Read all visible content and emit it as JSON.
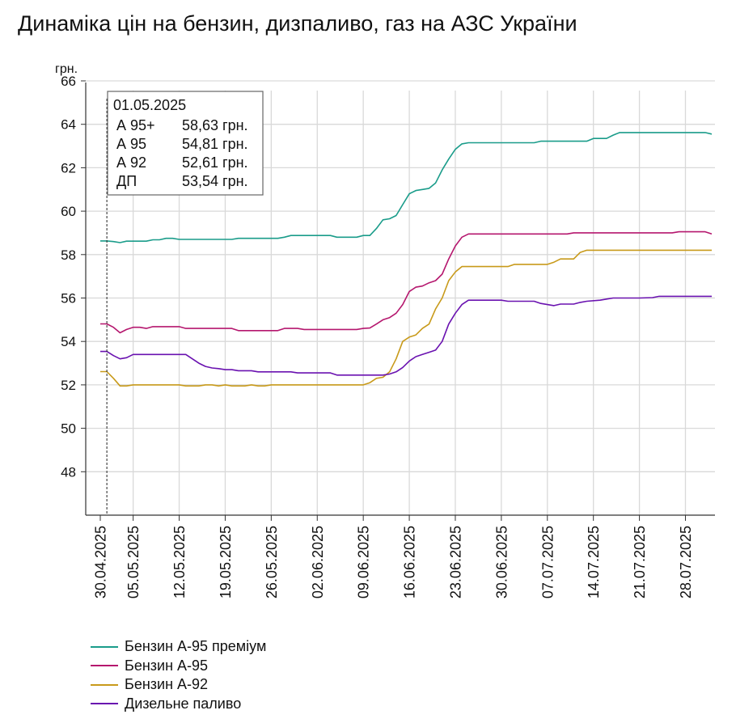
{
  "title": "Динаміка цін на бензин, дизпаливо, газ на АЗС України",
  "chart_data": {
    "type": "line",
    "title": "Динаміка цін на бензин, дизпаливо, газ на АЗС України",
    "ylabel": "грн.",
    "xlabel": "",
    "ylim": [
      46,
      66
    ],
    "yticks": [
      48,
      50,
      52,
      54,
      56,
      58,
      60,
      62,
      64,
      66
    ],
    "xlim": [
      "2025-04-30",
      "2025-08-01"
    ],
    "xtick_labels": [
      "30.04.2025",
      "05.05.2025",
      "12.05.2025",
      "19.05.2025",
      "26.05.2025",
      "02.06.2025",
      "09.06.2025",
      "16.06.2025",
      "23.06.2025",
      "30.06.2025",
      "07.07.2025",
      "14.07.2025",
      "21.07.2025",
      "28.07.2025"
    ],
    "xtick_dates": [
      "2025-04-30",
      "2025-05-05",
      "2025-05-12",
      "2025-05-19",
      "2025-05-26",
      "2025-06-02",
      "2025-06-09",
      "2025-06-16",
      "2025-06-23",
      "2025-06-30",
      "2025-07-07",
      "2025-07-14",
      "2025-07-21",
      "2025-07-28"
    ],
    "grid": true,
    "legend_position": "bottom-left",
    "hover": {
      "date": "2025-05-01",
      "date_label": "01.05.2025",
      "rows": [
        {
          "label": "А 95+",
          "value": "58,63 грн."
        },
        {
          "label": "А 95",
          "value": "54,81 грн."
        },
        {
          "label": "А 92",
          "value": "52,61 грн."
        },
        {
          "label": "ДП",
          "value": "53,54 грн."
        }
      ]
    },
    "series": [
      {
        "name": "Бензин А-95 преміум",
        "color": "#1a9c8a",
        "points": [
          [
            "2025-04-30",
            58.63
          ],
          [
            "2025-05-01",
            58.63
          ],
          [
            "2025-05-02",
            58.6
          ],
          [
            "2025-05-03",
            58.55
          ],
          [
            "2025-05-04",
            58.62
          ],
          [
            "2025-05-06",
            58.62
          ],
          [
            "2025-05-07",
            58.62
          ],
          [
            "2025-05-08",
            58.68
          ],
          [
            "2025-05-09",
            58.68
          ],
          [
            "2025-05-10",
            58.75
          ],
          [
            "2025-05-11",
            58.75
          ],
          [
            "2025-05-12",
            58.7
          ],
          [
            "2025-05-20",
            58.7
          ],
          [
            "2025-05-21",
            58.75
          ],
          [
            "2025-05-27",
            58.75
          ],
          [
            "2025-05-28",
            58.8
          ],
          [
            "2025-05-29",
            58.88
          ],
          [
            "2025-06-04",
            58.88
          ],
          [
            "2025-06-05",
            58.8
          ],
          [
            "2025-06-08",
            58.8
          ],
          [
            "2025-06-09",
            58.88
          ],
          [
            "2025-06-10",
            58.88
          ],
          [
            "2025-06-11",
            59.2
          ],
          [
            "2025-06-12",
            59.6
          ],
          [
            "2025-06-13",
            59.65
          ],
          [
            "2025-06-14",
            59.8
          ],
          [
            "2025-06-15",
            60.3
          ],
          [
            "2025-06-16",
            60.8
          ],
          [
            "2025-06-17",
            60.95
          ],
          [
            "2025-06-18",
            61.0
          ],
          [
            "2025-06-19",
            61.05
          ],
          [
            "2025-06-20",
            61.3
          ],
          [
            "2025-06-21",
            61.9
          ],
          [
            "2025-06-22",
            62.4
          ],
          [
            "2025-06-23",
            62.85
          ],
          [
            "2025-06-24",
            63.1
          ],
          [
            "2025-06-25",
            63.15
          ],
          [
            "2025-07-05",
            63.15
          ],
          [
            "2025-07-06",
            63.22
          ],
          [
            "2025-07-13",
            63.22
          ],
          [
            "2025-07-14",
            63.35
          ],
          [
            "2025-07-16",
            63.35
          ],
          [
            "2025-07-17",
            63.5
          ],
          [
            "2025-07-18",
            63.62
          ],
          [
            "2025-07-31",
            63.62
          ],
          [
            "2025-08-01",
            63.55
          ]
        ]
      },
      {
        "name": "Бензин А-95",
        "color": "#b5176e",
        "points": [
          [
            "2025-04-30",
            54.81
          ],
          [
            "2025-05-01",
            54.81
          ],
          [
            "2025-05-02",
            54.65
          ],
          [
            "2025-05-03",
            54.4
          ],
          [
            "2025-05-04",
            54.55
          ],
          [
            "2025-05-05",
            54.65
          ],
          [
            "2025-05-06",
            54.65
          ],
          [
            "2025-05-07",
            54.6
          ],
          [
            "2025-05-08",
            54.68
          ],
          [
            "2025-05-12",
            54.68
          ],
          [
            "2025-05-13",
            54.6
          ],
          [
            "2025-05-20",
            54.6
          ],
          [
            "2025-05-21",
            54.5
          ],
          [
            "2025-05-27",
            54.5
          ],
          [
            "2025-05-28",
            54.6
          ],
          [
            "2025-05-30",
            54.6
          ],
          [
            "2025-05-31",
            54.55
          ],
          [
            "2025-06-08",
            54.55
          ],
          [
            "2025-06-09",
            54.6
          ],
          [
            "2025-06-10",
            54.62
          ],
          [
            "2025-06-11",
            54.8
          ],
          [
            "2025-06-12",
            55.0
          ],
          [
            "2025-06-13",
            55.1
          ],
          [
            "2025-06-14",
            55.3
          ],
          [
            "2025-06-15",
            55.7
          ],
          [
            "2025-06-16",
            56.3
          ],
          [
            "2025-06-17",
            56.5
          ],
          [
            "2025-06-18",
            56.55
          ],
          [
            "2025-06-19",
            56.7
          ],
          [
            "2025-06-20",
            56.8
          ],
          [
            "2025-06-21",
            57.1
          ],
          [
            "2025-06-22",
            57.8
          ],
          [
            "2025-06-23",
            58.4
          ],
          [
            "2025-06-24",
            58.8
          ],
          [
            "2025-06-25",
            58.95
          ],
          [
            "2025-07-10",
            58.95
          ],
          [
            "2025-07-11",
            59.0
          ],
          [
            "2025-07-26",
            59.0
          ],
          [
            "2025-07-27",
            59.05
          ],
          [
            "2025-07-31",
            59.05
          ],
          [
            "2025-08-01",
            58.95
          ]
        ]
      },
      {
        "name": "Бензин А-92",
        "color": "#c89a1a",
        "points": [
          [
            "2025-04-30",
            52.61
          ],
          [
            "2025-05-01",
            52.61
          ],
          [
            "2025-05-02",
            52.3
          ],
          [
            "2025-05-03",
            51.95
          ],
          [
            "2025-05-04",
            51.95
          ],
          [
            "2025-05-05",
            52.0
          ],
          [
            "2025-05-12",
            52.0
          ],
          [
            "2025-05-13",
            51.95
          ],
          [
            "2025-05-15",
            51.95
          ],
          [
            "2025-05-16",
            52.0
          ],
          [
            "2025-05-17",
            52.0
          ],
          [
            "2025-05-18",
            51.95
          ],
          [
            "2025-05-19",
            52.0
          ],
          [
            "2025-05-20",
            51.95
          ],
          [
            "2025-05-22",
            51.95
          ],
          [
            "2025-05-23",
            52.0
          ],
          [
            "2025-05-24",
            51.95
          ],
          [
            "2025-05-25",
            51.95
          ],
          [
            "2025-05-26",
            52.0
          ],
          [
            "2025-06-09",
            52.0
          ],
          [
            "2025-06-10",
            52.1
          ],
          [
            "2025-06-11",
            52.3
          ],
          [
            "2025-06-12",
            52.35
          ],
          [
            "2025-06-13",
            52.6
          ],
          [
            "2025-06-14",
            53.2
          ],
          [
            "2025-06-15",
            54.0
          ],
          [
            "2025-06-16",
            54.2
          ],
          [
            "2025-06-17",
            54.3
          ],
          [
            "2025-06-18",
            54.6
          ],
          [
            "2025-06-19",
            54.8
          ],
          [
            "2025-06-20",
            55.5
          ],
          [
            "2025-06-21",
            56.0
          ],
          [
            "2025-06-22",
            56.8
          ],
          [
            "2025-06-23",
            57.2
          ],
          [
            "2025-06-24",
            57.45
          ],
          [
            "2025-07-01",
            57.45
          ],
          [
            "2025-07-02",
            57.55
          ],
          [
            "2025-07-07",
            57.55
          ],
          [
            "2025-07-08",
            57.65
          ],
          [
            "2025-07-09",
            57.8
          ],
          [
            "2025-07-11",
            57.8
          ],
          [
            "2025-07-12",
            58.1
          ],
          [
            "2025-07-13",
            58.2
          ],
          [
            "2025-08-01",
            58.2
          ]
        ]
      },
      {
        "name": "Дизельне паливо",
        "color": "#6a12b0",
        "points": [
          [
            "2025-04-30",
            53.54
          ],
          [
            "2025-05-01",
            53.54
          ],
          [
            "2025-05-02",
            53.35
          ],
          [
            "2025-05-03",
            53.2
          ],
          [
            "2025-05-04",
            53.25
          ],
          [
            "2025-05-05",
            53.4
          ],
          [
            "2025-05-13",
            53.4
          ],
          [
            "2025-05-14",
            53.2
          ],
          [
            "2025-05-15",
            53.0
          ],
          [
            "2025-05-16",
            52.85
          ],
          [
            "2025-05-17",
            52.78
          ],
          [
            "2025-05-18",
            52.75
          ],
          [
            "2025-05-19",
            52.7
          ],
          [
            "2025-05-20",
            52.7
          ],
          [
            "2025-05-21",
            52.65
          ],
          [
            "2025-05-23",
            52.65
          ],
          [
            "2025-05-24",
            52.6
          ],
          [
            "2025-05-29",
            52.6
          ],
          [
            "2025-05-30",
            52.55
          ],
          [
            "2025-06-04",
            52.55
          ],
          [
            "2025-06-05",
            52.45
          ],
          [
            "2025-06-12",
            52.45
          ],
          [
            "2025-06-13",
            52.5
          ],
          [
            "2025-06-14",
            52.6
          ],
          [
            "2025-06-15",
            52.8
          ],
          [
            "2025-06-16",
            53.1
          ],
          [
            "2025-06-17",
            53.3
          ],
          [
            "2025-06-18",
            53.4
          ],
          [
            "2025-06-19",
            53.5
          ],
          [
            "2025-06-20",
            53.6
          ],
          [
            "2025-06-21",
            54.0
          ],
          [
            "2025-06-22",
            54.8
          ],
          [
            "2025-06-23",
            55.3
          ],
          [
            "2025-06-24",
            55.7
          ],
          [
            "2025-06-25",
            55.9
          ],
          [
            "2025-06-30",
            55.9
          ],
          [
            "2025-07-01",
            55.85
          ],
          [
            "2025-07-05",
            55.85
          ],
          [
            "2025-07-06",
            55.75
          ],
          [
            "2025-07-07",
            55.7
          ],
          [
            "2025-07-08",
            55.65
          ],
          [
            "2025-07-09",
            55.72
          ],
          [
            "2025-07-11",
            55.72
          ],
          [
            "2025-07-12",
            55.8
          ],
          [
            "2025-07-13",
            55.85
          ],
          [
            "2025-07-15",
            55.9
          ],
          [
            "2025-07-16",
            55.95
          ],
          [
            "2025-07-17",
            56.0
          ],
          [
            "2025-07-21",
            56.0
          ],
          [
            "2025-07-23",
            56.02
          ],
          [
            "2025-07-24",
            56.08
          ],
          [
            "2025-08-01",
            56.08
          ]
        ]
      }
    ]
  }
}
